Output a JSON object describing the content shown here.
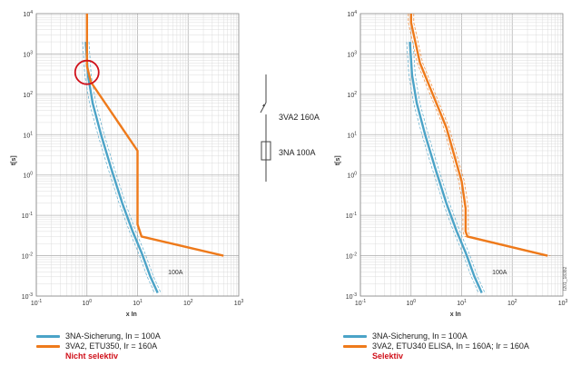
{
  "chart_data": [
    {
      "type": "line",
      "x_scale": "log",
      "y_scale": "log",
      "xlim": [
        0.1,
        1000
      ],
      "ylim": [
        0.001,
        10000
      ],
      "xlabel": "x In",
      "ylabel": "t[s]",
      "x_tick_labels": [
        "10-1",
        "100",
        "101",
        "102",
        "103"
      ],
      "y_tick_labels": [
        "10-3",
        "10-2",
        "10-1",
        "100",
        "101",
        "102",
        "103",
        "104"
      ],
      "grid": true,
      "series": [
        {
          "name": "3NA-Sicherung, In = 100A",
          "color": "#4ba3c7",
          "x": [
            0.95,
            1.05,
            1.3,
            1.9,
            3,
            5,
            8,
            12,
            18,
            25
          ],
          "y": [
            2000,
            300,
            60,
            10,
            1.5,
            0.2,
            0.04,
            0.012,
            0.003,
            0.0012
          ]
        },
        {
          "name": "3VA2, ETU350, Ir = 160A",
          "color": "#ee7a1b",
          "x": [
            1,
            1,
            1.2,
            10,
            10,
            10,
            12,
            500
          ],
          "y": [
            10000,
            500,
            200,
            4,
            4,
            0.06,
            0.03,
            0.01
          ]
        }
      ],
      "annotation": "100A",
      "verdict": "Nicht selektiv",
      "verdict_color": "#d0101a"
    },
    {
      "type": "line",
      "x_scale": "log",
      "y_scale": "log",
      "xlim": [
        0.1,
        1000
      ],
      "ylim": [
        0.001,
        10000
      ],
      "xlabel": "x In",
      "ylabel": "t[s]",
      "x_tick_labels": [
        "10-1",
        "100",
        "101",
        "102",
        "103"
      ],
      "y_tick_labels": [
        "10-3",
        "10-2",
        "10-1",
        "100",
        "101",
        "102",
        "103",
        "104"
      ],
      "grid": true,
      "series": [
        {
          "name": "3NA-Sicherung, In = 100A",
          "color": "#4ba3c7",
          "x": [
            0.95,
            1.05,
            1.3,
            1.9,
            3,
            5,
            8,
            12,
            18,
            25
          ],
          "y": [
            2000,
            300,
            60,
            10,
            1.5,
            0.2,
            0.04,
            0.012,
            0.003,
            0.0012
          ]
        },
        {
          "name": "3VA2, ETU340 ELISA, In = 160A; Ir = 160A",
          "color": "#ee7a1b",
          "x": [
            1,
            1,
            1.5,
            5,
            10,
            12,
            12,
            13,
            500
          ],
          "y": [
            10000,
            6000,
            600,
            15,
            0.7,
            0.15,
            0.04,
            0.03,
            0.01
          ]
        }
      ],
      "annotation": "100A",
      "verdict": "Selektiv",
      "verdict_color": "#d0101a"
    }
  ],
  "schematic": {
    "breaker_label": "3VA2 160A",
    "fuse_label": "3NA 100A"
  },
  "figure_id": "I201_18382"
}
